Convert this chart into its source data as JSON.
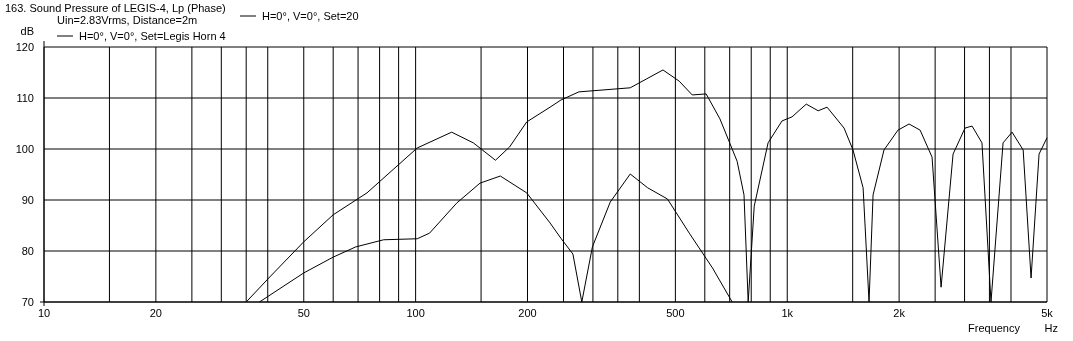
{
  "chart_data": {
    "type": "line",
    "title": "163. Sound Pressure of LEGIS-4, Lp (Phase)",
    "subtitle": "Uin=2.83Vrms, Distance=2m",
    "ylabel": "dB",
    "xlabel": "Frequency",
    "annotations": [
      "Hz"
    ],
    "log": "x",
    "grid": true,
    "legend": "top left",
    "line_style": "solid",
    "marker": "none",
    "xlim": [
      10,
      5000
    ],
    "ylim": [
      70,
      120
    ],
    "xticks": [
      10,
      {
        "value": 15,
        "label": null
      },
      20,
      {
        "value": 25,
        "label": null
      },
      {
        "value": 30,
        "label": null
      },
      {
        "value": 35,
        "label": null
      },
      {
        "value": 40,
        "label": null
      },
      50,
      {
        "value": 60,
        "label": null
      },
      {
        "value": 70,
        "label": null
      },
      {
        "value": 80,
        "label": null
      },
      {
        "value": 90,
        "label": null
      },
      100,
      {
        "value": 150,
        "label": null
      },
      200,
      {
        "value": 250,
        "label": null
      },
      {
        "value": 300,
        "label": null
      },
      {
        "value": 350,
        "label": null
      },
      {
        "value": 400,
        "label": null
      },
      500,
      {
        "value": 600,
        "label": null
      },
      {
        "value": 700,
        "label": null
      },
      {
        "value": 800,
        "label": null
      },
      {
        "value": 900,
        "label": null
      },
      {
        "value": 1000,
        "label": "1k"
      },
      {
        "value": 1500,
        "label": null
      },
      {
        "value": 2000,
        "label": "2k"
      },
      {
        "value": 2500,
        "label": null
      },
      {
        "value": 3000,
        "label": null
      },
      {
        "value": 3500,
        "label": null
      },
      {
        "value": 4000,
        "label": null
      },
      {
        "value": 5000,
        "label": "5k"
      }
    ],
    "yticks": [
      70,
      80,
      90,
      100,
      110,
      120
    ],
    "series": [
      {
        "name": "H=0°, V=0°, Set=20",
        "color": "#000000",
        "x": [
          38,
          50,
          60,
          69,
          82,
          101,
          109,
          129,
          149,
          169,
          199,
          230,
          246,
          265,
          280,
          299,
          334,
          378,
          421,
          476,
          545,
          629,
          711
        ],
        "values": [
          70,
          75.7,
          78.8,
          80.8,
          82.2,
          82.4,
          83.5,
          89.4,
          93.3,
          94.7,
          91.4,
          85.5,
          82.5,
          79.4,
          70,
          80.8,
          89.6,
          95.1,
          92.4,
          90.2,
          83.5,
          76.7,
          70
        ]
      },
      {
        "name": "H=0°, V=0°, Set=Legis Horn 4",
        "color": "#000000",
        "x": [
          35,
          40.5,
          50,
          60,
          74,
          101,
          125,
          143,
          164,
          179,
          199,
          230,
          246,
          275,
          378,
          463,
          512,
          555,
          605,
          659,
          733,
          765,
          785,
          815,
          888,
          968,
          1030,
          1125,
          1211,
          1280,
          1422,
          1503,
          1600,
          1660,
          1702,
          1821,
          1986,
          2127,
          2278,
          2453,
          2594,
          2794,
          3008,
          3143,
          3342,
          3534,
          3808,
          4027,
          4314,
          4530,
          4760,
          5000
        ],
        "values": [
          70,
          74.9,
          81.8,
          87.1,
          91.4,
          100.2,
          103.3,
          101.2,
          97.8,
          100.4,
          105.3,
          108.2,
          109.6,
          111.2,
          112,
          115.5,
          113.3,
          110.6,
          110.8,
          105.9,
          97.6,
          91,
          70,
          88.8,
          101.2,
          105.5,
          106.3,
          108.8,
          107.5,
          108.2,
          104.1,
          99.8,
          92.4,
          70,
          91,
          99.8,
          103.7,
          104.9,
          103.7,
          98.4,
          72.9,
          99,
          104.1,
          104.5,
          101.2,
          70,
          101.2,
          103.3,
          99.8,
          74.7,
          99,
          102.2
        ]
      }
    ]
  }
}
